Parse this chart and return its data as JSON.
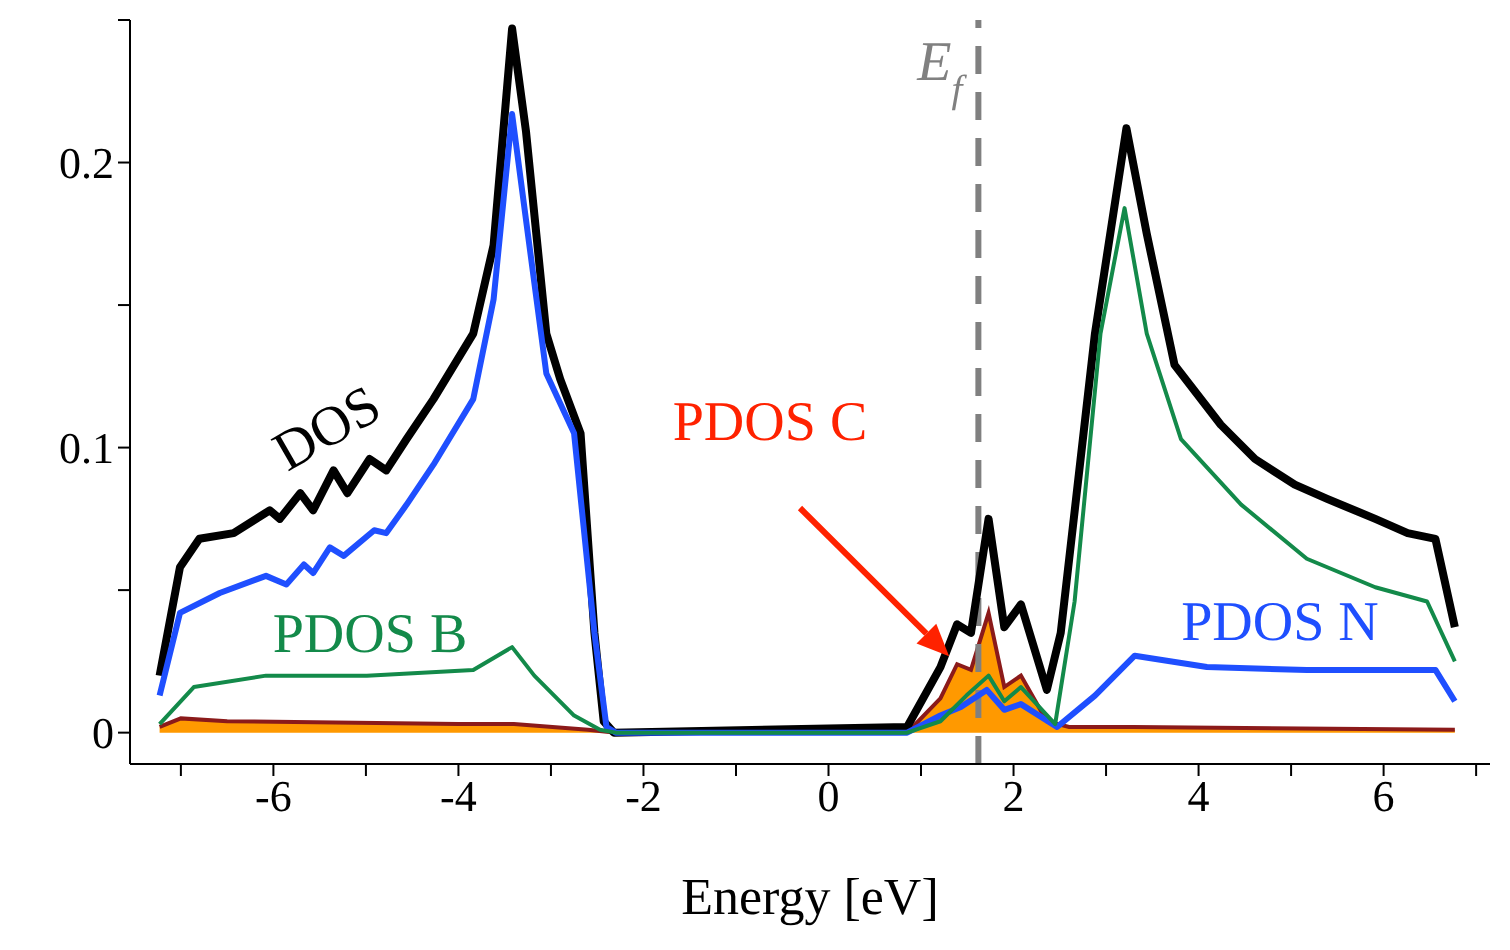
{
  "chart_data": {
    "type": "line",
    "xlabel": "Energy [eV]",
    "xlim": [
      -7.55,
      7.15
    ],
    "ylim": [
      -0.011,
      0.25
    ],
    "xticks": [
      -6,
      {
        "value": -7,
        "label": null
      },
      {
        "value": -5,
        "label": null
      },
      -4,
      {
        "value": -3,
        "label": null
      },
      -2,
      {
        "value": -1,
        "label": null
      },
      0,
      {
        "value": 1,
        "label": null
      },
      2,
      {
        "value": 3,
        "label": null
      },
      4,
      {
        "value": 5,
        "label": null
      },
      6,
      {
        "value": 7,
        "label": null
      }
    ],
    "yticks": [
      0,
      {
        "value": 0.05,
        "label": null
      },
      0.1,
      {
        "value": 0.15,
        "label": null
      },
      0.2,
      {
        "value": 0.25,
        "label": null
      }
    ],
    "marker": "none",
    "line_style": "solid",
    "ref_lines": [
      {
        "axis": "x",
        "value": 1.62,
        "label": "E$_{f}$",
        "color": "#808080",
        "line_style": "dashed"
      }
    ],
    "series": [
      {
        "name": "DOS",
        "color": "#000000",
        "x": [
          -7.23,
          -7.01,
          -6.8,
          -6.43,
          -6.04,
          -5.93,
          -5.71,
          -5.57,
          -5.35,
          -5.2,
          -4.96,
          -4.78,
          -4.56,
          -4.27,
          -3.84,
          -3.62,
          -3.42,
          -3.27,
          -3.05,
          -2.9,
          -2.68,
          -2.53,
          -2.43,
          -2.32,
          0.85,
          1.21,
          1.39,
          1.54,
          1.73,
          1.9,
          2.08,
          2.36,
          2.51,
          2.88,
          3.22,
          3.44,
          3.74,
          4.24,
          4.61,
          5.04,
          5.39,
          5.91,
          6.26,
          6.56,
          6.77
        ],
        "values": [
          0.02,
          0.058,
          0.068,
          0.07,
          0.078,
          0.075,
          0.084,
          0.078,
          0.092,
          0.084,
          0.096,
          0.092,
          0.103,
          0.117,
          0.14,
          0.171,
          0.247,
          0.211,
          0.14,
          0.124,
          0.105,
          0.035,
          0.004,
          0,
          0.002,
          0.023,
          0.038,
          0.035,
          0.075,
          0.037,
          0.045,
          0.015,
          0.035,
          0.14,
          0.212,
          0.175,
          0.129,
          0.108,
          0.096,
          0.087,
          0.082,
          0.075,
          0.07,
          0.068,
          0.037
        ]
      },
      {
        "name": "PDOS N",
        "color": "#1f4fff",
        "x": [
          -7.23,
          -7.01,
          -6.58,
          -6.08,
          -5.86,
          -5.67,
          -5.57,
          -5.39,
          -5.24,
          -4.91,
          -4.78,
          -4.56,
          -4.27,
          -3.84,
          -3.62,
          -3.42,
          -3.27,
          -3.05,
          -2.75,
          -2.53,
          -2.4,
          -2.3,
          0.85,
          1.21,
          1.43,
          1.71,
          1.9,
          2.08,
          2.47,
          2.88,
          3.31,
          4.09,
          5.17,
          6.56,
          6.77
        ],
        "values": [
          0.013,
          0.042,
          0.049,
          0.055,
          0.052,
          0.059,
          0.056,
          0.065,
          0.062,
          0.071,
          0.07,
          0.08,
          0.094,
          0.117,
          0.152,
          0.217,
          0.18,
          0.126,
          0.105,
          0.035,
          0.002,
          0,
          0,
          0.006,
          0.009,
          0.015,
          0.008,
          0.01,
          0.002,
          0.013,
          0.027,
          0.023,
          0.022,
          0.022,
          0.011
        ]
      },
      {
        "name": "PDOS B",
        "color": "#138a4a",
        "x": [
          -7.23,
          -6.86,
          -6.08,
          -4.99,
          -3.84,
          -3.42,
          -3.18,
          -2.75,
          -2.47,
          -2.3,
          0.85,
          1.21,
          1.49,
          1.73,
          1.9,
          2.08,
          2.45,
          2.66,
          2.94,
          3.2,
          3.44,
          3.81,
          4.46,
          5.17,
          5.91,
          6.47,
          6.77
        ],
        "values": [
          0.003,
          0.016,
          0.02,
          0.02,
          0.022,
          0.03,
          0.02,
          0.006,
          0.001,
          0,
          0,
          0.004,
          0.013,
          0.02,
          0.011,
          0.016,
          0.003,
          0.046,
          0.14,
          0.184,
          0.14,
          0.103,
          0.08,
          0.061,
          0.051,
          0.046,
          0.025
        ]
      },
      {
        "name": "PDOS C",
        "type": "area",
        "color": "#ff9900",
        "x": [
          -7.23,
          -7.0,
          -6.5,
          -4.0,
          -3.4,
          -2.6,
          -2.3,
          0.85,
          1.21,
          1.39,
          1.54,
          1.73,
          1.9,
          2.08,
          2.36,
          2.6,
          3.3,
          6.77
        ],
        "values": [
          0.002,
          0.005,
          0.004,
          0.003,
          0.003,
          0.001,
          0,
          0,
          0.012,
          0.024,
          0.022,
          0.042,
          0.016,
          0.02,
          0.004,
          0.002,
          0.002,
          0.001
        ]
      }
    ]
  }
}
